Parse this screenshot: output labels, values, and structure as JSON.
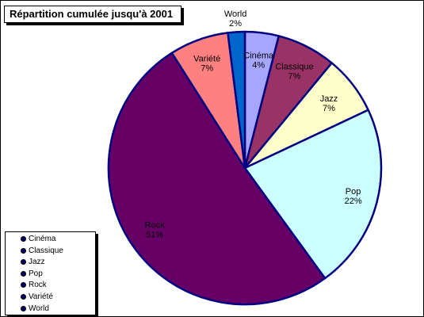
{
  "chart_data": {
    "type": "pie",
    "title": "Répartition cumulée jusqu'à 2001",
    "start_angle_deg": 0,
    "direction": "clockwise",
    "legend_position": "bottom-left",
    "slices": [
      {
        "name": "Cinéma",
        "value": 4,
        "label": "4%",
        "color": "#a6a6ff"
      },
      {
        "name": "Classique",
        "value": 7,
        "label": "7%",
        "color": "#993366"
      },
      {
        "name": "Jazz",
        "value": 7,
        "label": "7%",
        "color": "#ffffcc"
      },
      {
        "name": "Pop",
        "value": 22,
        "label": "22%",
        "color": "#ccffff"
      },
      {
        "name": "Rock",
        "value": 51,
        "label": "51%",
        "color": "#660066"
      },
      {
        "name": "Variété",
        "value": 7,
        "label": "7%",
        "color": "#ff8080"
      },
      {
        "name": "World",
        "value": 2,
        "label": "2%",
        "color": "#0066cc"
      }
    ],
    "slice_border_color": "#000080"
  },
  "legend": {
    "items": [
      "Cinéma",
      "Classique",
      "Jazz",
      "Pop",
      "Rock",
      "Variété",
      "World"
    ]
  }
}
